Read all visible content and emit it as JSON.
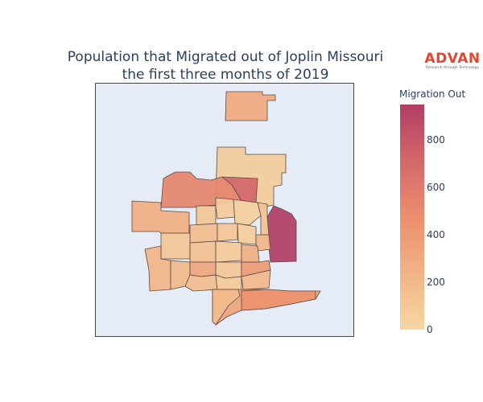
{
  "title": {
    "line1": "Population that Migrated out of Joplin Missouri",
    "line2": "the first three months of 2019"
  },
  "logo": {
    "word": "ADVAN",
    "tagline": "Research through Technology",
    "color": "#e8442d"
  },
  "colorbar": {
    "title": "Migration Out",
    "min": 0,
    "max": 950,
    "ticks": [
      {
        "label": "0",
        "value": 0
      },
      {
        "label": "200",
        "value": 200
      },
      {
        "label": "400",
        "value": 400
      },
      {
        "label": "600",
        "value": 600
      },
      {
        "label": "800",
        "value": 800
      }
    ],
    "colorscale": [
      "#f5d7a3",
      "#f2b385",
      "#ec8e6e",
      "#d4686a",
      "#b03d64"
    ]
  },
  "map": {
    "background": "#e5ecf6",
    "border_color": "#444444"
  },
  "chart_data": {
    "type": "choropleth",
    "title": "Population that Migrated out of Joplin Missouri the first three months of 2019",
    "colorbar_title": "Migration Out",
    "value_range": [
      0,
      950
    ],
    "regions": [
      {
        "name": "",
        "value": 170
      },
      {
        "name": "",
        "value": 80
      },
      {
        "name": "",
        "value": 480
      },
      {
        "name": "",
        "value": 720
      },
      {
        "name": "",
        "value": 540
      },
      {
        "name": "",
        "value": 950
      },
      {
        "name": "",
        "value": 240
      },
      {
        "name": "",
        "value": 300
      },
      {
        "name": "",
        "value": 200
      },
      {
        "name": "",
        "value": 330
      }
    ]
  }
}
